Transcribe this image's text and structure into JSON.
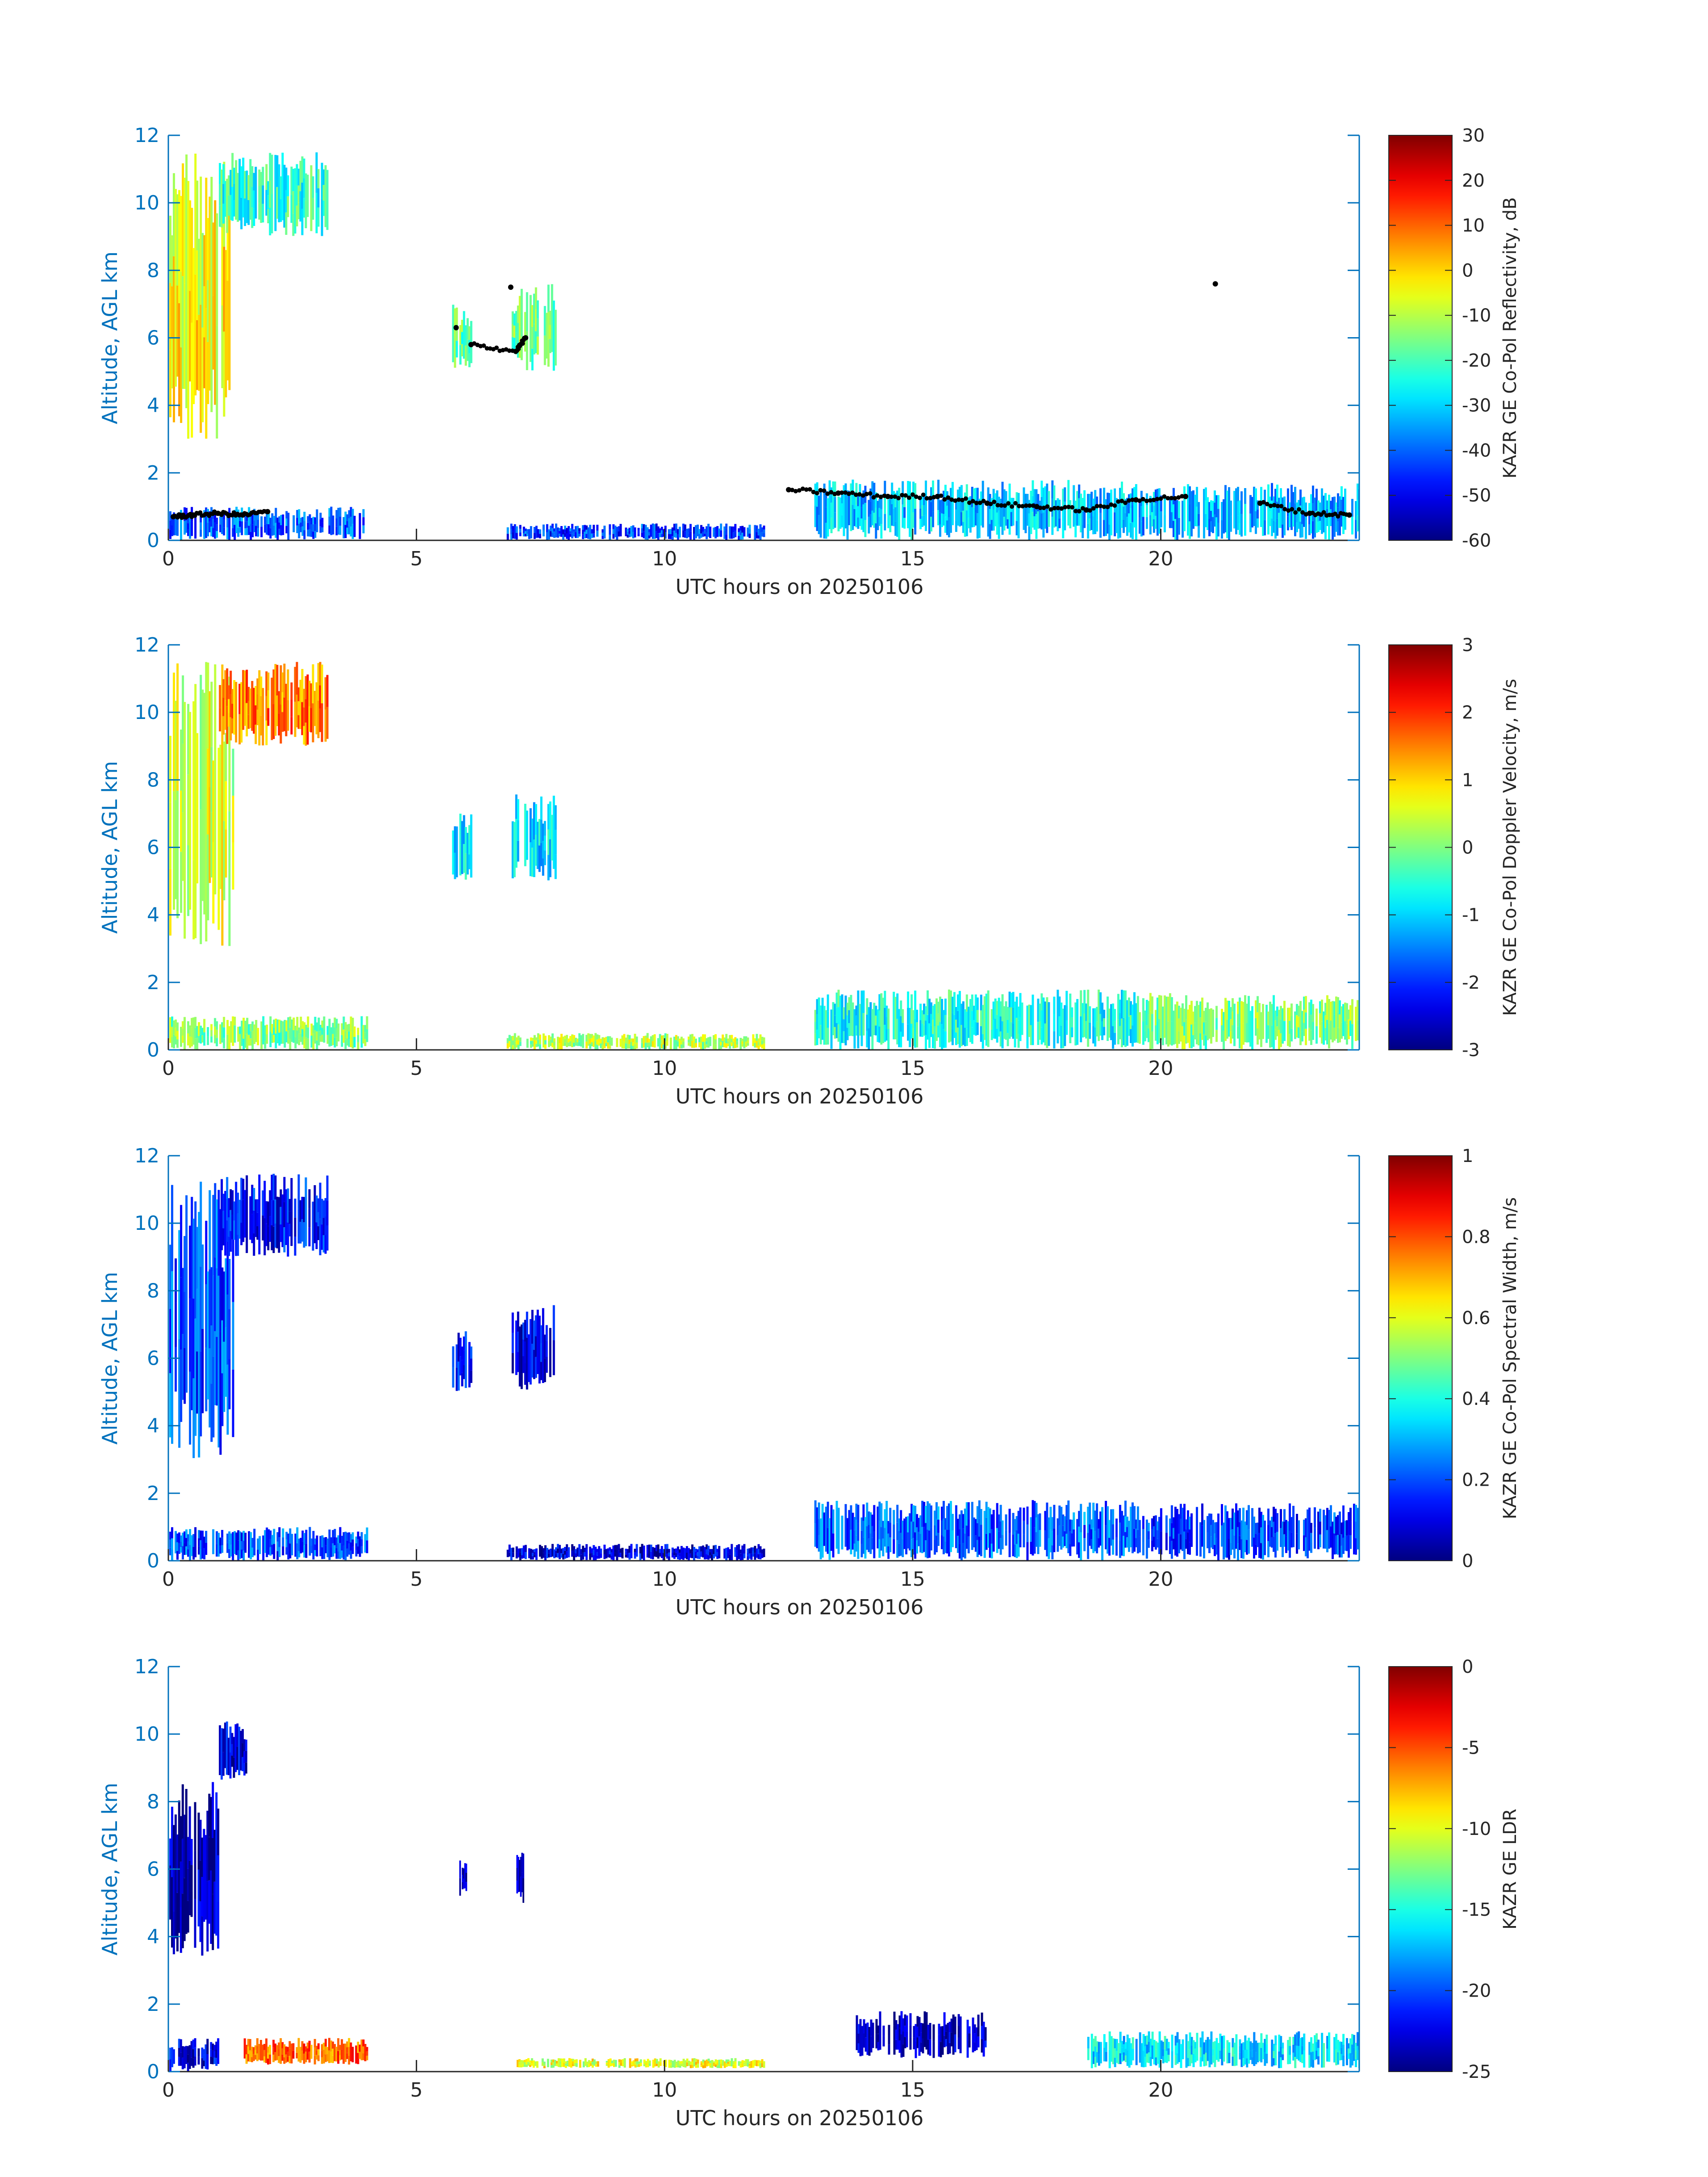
{
  "figure": {
    "background": "#ffffff",
    "axis_color": "#0072bd",
    "text_color": "#262626"
  },
  "chart_data": [
    {
      "id": "reflectivity",
      "type": "heatmap",
      "xlabel": "UTC hours on 20250106",
      "ylabel": "Altitude, AGL km",
      "xlim": [
        0,
        24
      ],
      "ylim": [
        0,
        12
      ],
      "xticks": [
        "0",
        "5",
        "10",
        "15",
        "20"
      ],
      "yticks": [
        "0",
        "2",
        "4",
        "6",
        "8",
        "10",
        "12"
      ],
      "colorbar": {
        "label": "KAZR GE Co-Pol Reflectivity, dB",
        "range": [
          -60,
          30
        ],
        "ticks": [
          "30",
          "20",
          "10",
          "0",
          "-10",
          "-20",
          "-30",
          "-40",
          "-50",
          "-60"
        ],
        "colormap": "jet"
      },
      "cloud_regions": [
        {
          "t0": 0.0,
          "t1": 1.3,
          "z0": 3.0,
          "z1": 11.5,
          "v": 0.62
        },
        {
          "t0": 1.0,
          "t1": 3.2,
          "z0": 9.0,
          "z1": 11.5,
          "v": 0.42
        },
        {
          "t0": 5.7,
          "t1": 6.1,
          "z0": 5.0,
          "z1": 7.0,
          "v": 0.48
        },
        {
          "t0": 6.9,
          "t1": 7.8,
          "z0": 5.0,
          "z1": 7.6,
          "v": 0.48
        },
        {
          "t0": 0.0,
          "t1": 4.0,
          "z0": 0.0,
          "z1": 1.0,
          "v": 0.22
        },
        {
          "t0": 6.8,
          "t1": 12.0,
          "z0": 0.0,
          "z1": 0.5,
          "v": 0.18
        },
        {
          "t0": 13.0,
          "t1": 19.5,
          "z0": 0.0,
          "z1": 1.8,
          "v": 0.32
        },
        {
          "t0": 19.5,
          "t1": 24.0,
          "z0": 0.0,
          "z1": 1.7,
          "v": 0.3
        }
      ],
      "cloud_base_markers": [
        [
          0.1,
          0.7
        ],
        [
          0.5,
          0.75
        ],
        [
          1.0,
          0.8
        ],
        [
          1.5,
          0.75
        ],
        [
          2.0,
          0.85
        ],
        [
          5.8,
          6.3
        ],
        [
          6.1,
          5.8
        ],
        [
          7.0,
          5.6
        ],
        [
          7.2,
          6.0
        ],
        [
          6.9,
          7.5
        ],
        [
          12.5,
          1.5
        ],
        [
          13.5,
          1.4
        ],
        [
          14.5,
          1.3
        ],
        [
          15.5,
          1.3
        ],
        [
          16.5,
          1.1
        ],
        [
          17.5,
          1.0
        ],
        [
          18.5,
          0.9
        ],
        [
          19.5,
          1.2
        ],
        [
          20.5,
          1.3
        ],
        [
          21.1,
          7.6
        ],
        [
          22.0,
          1.1
        ],
        [
          23.0,
          0.8
        ],
        [
          23.8,
          0.75
        ]
      ]
    },
    {
      "id": "doppler",
      "type": "heatmap",
      "xlabel": "UTC hours on 20250106",
      "ylabel": "Altitude, AGL km",
      "xlim": [
        0,
        24
      ],
      "ylim": [
        0,
        12
      ],
      "xticks": [
        "0",
        "5",
        "10",
        "15",
        "20"
      ],
      "yticks": [
        "0",
        "2",
        "4",
        "6",
        "8",
        "10",
        "12"
      ],
      "colorbar": {
        "label": "KAZR GE Co-Pol Doppler Velocity, m/s",
        "range": [
          -3,
          3
        ],
        "ticks": [
          "3",
          "2",
          "1",
          "0",
          "-1",
          "-2",
          "-3"
        ],
        "colormap": "jet"
      },
      "cloud_regions": [
        {
          "t0": 0.0,
          "t1": 1.3,
          "z0": 3.0,
          "z1": 11.5,
          "v": 0.58
        },
        {
          "t0": 1.0,
          "t1": 3.2,
          "z0": 9.0,
          "z1": 11.5,
          "v": 0.75
        },
        {
          "t0": 5.7,
          "t1": 6.1,
          "z0": 5.0,
          "z1": 7.0,
          "v": 0.35
        },
        {
          "t0": 6.9,
          "t1": 7.8,
          "z0": 5.0,
          "z1": 7.6,
          "v": 0.35
        },
        {
          "t0": 0.0,
          "t1": 4.0,
          "z0": 0.0,
          "z1": 1.0,
          "v": 0.5
        },
        {
          "t0": 6.8,
          "t1": 12.0,
          "z0": 0.0,
          "z1": 0.5,
          "v": 0.55
        },
        {
          "t0": 13.0,
          "t1": 19.5,
          "z0": 0.0,
          "z1": 1.8,
          "v": 0.4
        },
        {
          "t0": 19.5,
          "t1": 24.0,
          "z0": 0.0,
          "z1": 1.7,
          "v": 0.5
        }
      ]
    },
    {
      "id": "spectral-width",
      "type": "heatmap",
      "xlabel": "UTC hours on 20250106",
      "ylabel": "Altitude, AGL km",
      "xlim": [
        0,
        24
      ],
      "ylim": [
        0,
        12
      ],
      "xticks": [
        "0",
        "5",
        "10",
        "15",
        "20"
      ],
      "yticks": [
        "0",
        "2",
        "4",
        "6",
        "8",
        "10",
        "12"
      ],
      "colorbar": {
        "label": "KAZR GE Co-Pol Spectral Width, m/s",
        "range": [
          0,
          1
        ],
        "ticks": [
          "1",
          "0.8",
          "0.6",
          "0.4",
          "0.2",
          "0"
        ],
        "colormap": "jet"
      },
      "cloud_regions": [
        {
          "t0": 0.0,
          "t1": 1.3,
          "z0": 3.0,
          "z1": 11.5,
          "v": 0.2
        },
        {
          "t0": 1.0,
          "t1": 3.2,
          "z0": 9.0,
          "z1": 11.5,
          "v": 0.14
        },
        {
          "t0": 5.7,
          "t1": 6.1,
          "z0": 5.0,
          "z1": 7.0,
          "v": 0.12
        },
        {
          "t0": 6.9,
          "t1": 7.8,
          "z0": 5.0,
          "z1": 7.6,
          "v": 0.12
        },
        {
          "t0": 0.0,
          "t1": 4.0,
          "z0": 0.0,
          "z1": 1.0,
          "v": 0.2
        },
        {
          "t0": 6.8,
          "t1": 12.0,
          "z0": 0.0,
          "z1": 0.5,
          "v": 0.1
        },
        {
          "t0": 13.0,
          "t1": 19.5,
          "z0": 0.0,
          "z1": 1.8,
          "v": 0.22
        },
        {
          "t0": 19.5,
          "t1": 24.0,
          "z0": 0.0,
          "z1": 1.7,
          "v": 0.18
        }
      ]
    },
    {
      "id": "ldr",
      "type": "heatmap",
      "xlabel": "UTC hours on 20250106",
      "ylabel": "Altitude, AGL km",
      "xlim": [
        0,
        24
      ],
      "ylim": [
        0,
        12
      ],
      "xticks": [
        "0",
        "5",
        "10",
        "15",
        "20"
      ],
      "yticks": [
        "0",
        "2",
        "4",
        "6",
        "8",
        "10",
        "12"
      ],
      "colorbar": {
        "label": "KAZR GE LDR",
        "range": [
          -25,
          0
        ],
        "ticks": [
          "0",
          "-5",
          "-10",
          "-15",
          "-20",
          "-25"
        ],
        "colormap": "jet"
      },
      "cloud_regions": [
        {
          "t0": 0.0,
          "t1": 1.0,
          "z0": 3.4,
          "z1": 8.6,
          "v": 0.06
        },
        {
          "t0": 1.0,
          "t1": 1.6,
          "z0": 8.6,
          "z1": 10.4,
          "v": 0.1
        },
        {
          "t0": 5.85,
          "t1": 6.0,
          "z0": 5.2,
          "z1": 6.3,
          "v": 0.06
        },
        {
          "t0": 7.0,
          "t1": 7.15,
          "z0": 5.0,
          "z1": 6.5,
          "v": 0.06
        },
        {
          "t0": 0.0,
          "t1": 1.0,
          "z0": 0.0,
          "z1": 1.0,
          "v": 0.1
        },
        {
          "t0": 1.5,
          "t1": 4.0,
          "z0": 0.2,
          "z1": 1.0,
          "v": 0.78
        },
        {
          "t0": 7.0,
          "t1": 12.0,
          "z0": 0.1,
          "z1": 0.4,
          "v": 0.6
        },
        {
          "t0": 13.8,
          "t1": 16.5,
          "z0": 0.4,
          "z1": 1.8,
          "v": 0.06
        },
        {
          "t0": 18.5,
          "t1": 24.0,
          "z0": 0.1,
          "z1": 1.2,
          "v": 0.35
        }
      ]
    }
  ]
}
